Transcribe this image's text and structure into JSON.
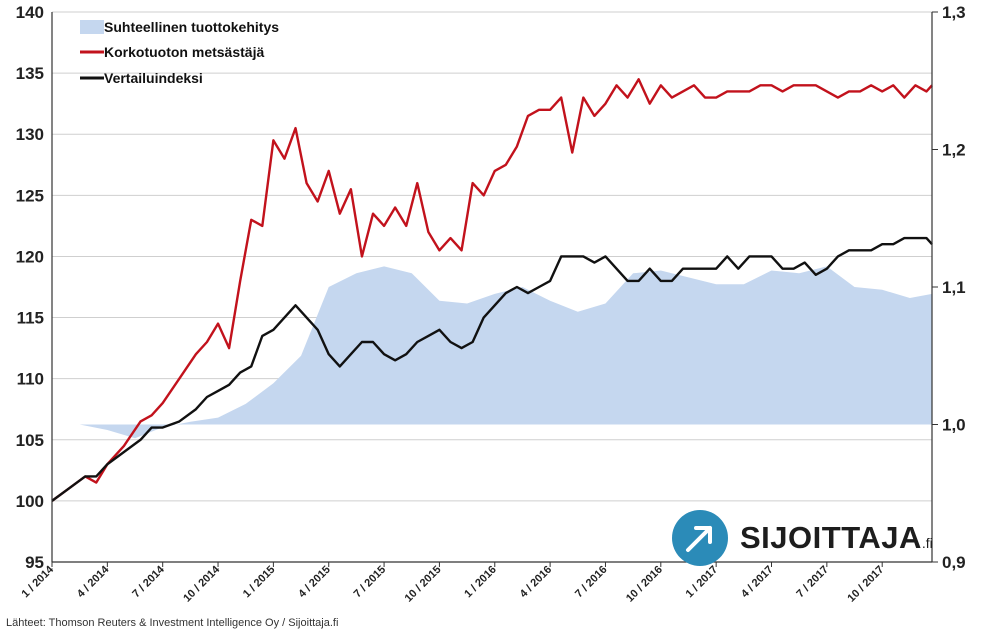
{
  "chart_data": {
    "type": "line",
    "x_labels": [
      "1 / 2014",
      "4 / 2014",
      "7 / 2014",
      "10 / 2014",
      "1 / 2015",
      "4 / 2015",
      "7 / 2015",
      "10 / 2015",
      "1 / 2016",
      "4 / 2016",
      "7 / 2016",
      "10 / 2016",
      "1 / 2017",
      "4 / 2017",
      "7 / 2017",
      "10 / 2017"
    ],
    "y_left": {
      "min": 95,
      "max": 140,
      "ticks": [
        "95",
        "100",
        "105",
        "110",
        "115",
        "120",
        "125",
        "130",
        "135",
        "140"
      ]
    },
    "y_right": {
      "min": 0.9,
      "max": 1.3,
      "ticks": [
        "0,9",
        "1,0",
        "1,1",
        "1,2",
        "1,3"
      ]
    },
    "legend_placement": "top-left",
    "series": [
      {
        "name": "Suhteellinen tuottokehitys",
        "kind": "area",
        "axis": "right",
        "color": "#c5d7ef",
        "x": [
          0,
          0.5,
          1,
          1.5,
          2,
          2.5,
          3,
          3.5,
          4,
          4.5,
          5,
          5.5,
          6,
          6.5,
          7,
          7.5,
          8,
          8.5,
          9,
          9.5,
          10,
          10.5,
          11,
          11.5,
          12,
          12.5,
          13,
          13.5,
          14,
          14.5,
          15,
          15.5,
          15.9
        ],
        "y": [
          1.0,
          1.0,
          0.996,
          0.99,
          0.998,
          1.002,
          1.005,
          1.015,
          1.03,
          1.05,
          1.1,
          1.11,
          1.115,
          1.11,
          1.09,
          1.088,
          1.095,
          1.1,
          1.09,
          1.082,
          1.088,
          1.11,
          1.112,
          1.107,
          1.102,
          1.102,
          1.112,
          1.11,
          1.115,
          1.1,
          1.098,
          1.092,
          1.095
        ]
      },
      {
        "name": "Korkotuoton metsästäjä",
        "kind": "line",
        "axis": "left",
        "color": "#c2121c",
        "x": [
          0,
          0.3,
          0.6,
          0.8,
          1,
          1.3,
          1.6,
          1.8,
          2,
          2.3,
          2.6,
          2.8,
          3,
          3.2,
          3.4,
          3.6,
          3.8,
          4,
          4.2,
          4.4,
          4.6,
          4.8,
          5,
          5.2,
          5.4,
          5.6,
          5.8,
          6,
          6.2,
          6.4,
          6.6,
          6.8,
          7,
          7.2,
          7.4,
          7.6,
          7.8,
          8,
          8.2,
          8.4,
          8.6,
          8.8,
          9,
          9.2,
          9.4,
          9.6,
          9.8,
          10,
          10.2,
          10.4,
          10.6,
          10.8,
          11,
          11.2,
          11.4,
          11.6,
          11.8,
          12,
          12.2,
          12.4,
          12.6,
          12.8,
          13,
          13.2,
          13.4,
          13.6,
          13.8,
          14,
          14.2,
          14.4,
          14.6,
          14.8,
          15,
          15.2,
          15.4,
          15.6,
          15.8,
          15.9
        ],
        "y": [
          100,
          101,
          102,
          101.5,
          103,
          104.5,
          106.5,
          107,
          108,
          110,
          112,
          113,
          114.5,
          112.5,
          118,
          123,
          122.5,
          129.5,
          128,
          130.5,
          126,
          124.5,
          127,
          123.5,
          125.5,
          120,
          123.5,
          122.5,
          124,
          122.5,
          126,
          122,
          120.5,
          121.5,
          120.5,
          126,
          125,
          127,
          127.5,
          129,
          131.5,
          132,
          132,
          133,
          128.5,
          133,
          131.5,
          132.5,
          134,
          133,
          134.5,
          132.5,
          134,
          133,
          133.5,
          134,
          133,
          133,
          133.5,
          133.5,
          133.5,
          134,
          134,
          133.5,
          134,
          134,
          134,
          133.5,
          133,
          133.5,
          133.5,
          134,
          133.5,
          134,
          133,
          134,
          133.5,
          134
        ]
      },
      {
        "name": "Vertailuindeksi",
        "kind": "line",
        "axis": "left",
        "color": "#111111",
        "x": [
          0,
          0.3,
          0.6,
          0.8,
          1,
          1.3,
          1.6,
          1.8,
          2,
          2.3,
          2.6,
          2.8,
          3,
          3.2,
          3.4,
          3.6,
          3.8,
          4,
          4.2,
          4.4,
          4.6,
          4.8,
          5,
          5.2,
          5.4,
          5.6,
          5.8,
          6,
          6.2,
          6.4,
          6.6,
          6.8,
          7,
          7.2,
          7.4,
          7.6,
          7.8,
          8,
          8.2,
          8.4,
          8.6,
          8.8,
          9,
          9.2,
          9.4,
          9.6,
          9.8,
          10,
          10.2,
          10.4,
          10.6,
          10.8,
          11,
          11.2,
          11.4,
          11.6,
          11.8,
          12,
          12.2,
          12.4,
          12.6,
          12.8,
          13,
          13.2,
          13.4,
          13.6,
          13.8,
          14,
          14.2,
          14.4,
          14.6,
          14.8,
          15,
          15.2,
          15.4,
          15.6,
          15.8,
          15.9
        ],
        "y": [
          100,
          101,
          102,
          102,
          103,
          104,
          105,
          106,
          106,
          106.5,
          107.5,
          108.5,
          109,
          109.5,
          110.5,
          111,
          113.5,
          114,
          115,
          116,
          115,
          114,
          112,
          111,
          112,
          113,
          113,
          112,
          111.5,
          112,
          113,
          113.5,
          114,
          113,
          112.5,
          113,
          115,
          116,
          117,
          117.5,
          117,
          117.5,
          118,
          120,
          120,
          120,
          119.5,
          120,
          119,
          118,
          118,
          119,
          118,
          118,
          119,
          119,
          119,
          119,
          120,
          119,
          120,
          120,
          120,
          119,
          119,
          119.5,
          118.5,
          119,
          120,
          120.5,
          120.5,
          120.5,
          121,
          121,
          121.5,
          121.5,
          121.5,
          121
        ]
      }
    ]
  },
  "footer": {
    "source": "Lähteet: Thomson Reuters & Investment Intelligence Oy / Sijoittaja.fi"
  },
  "logo": {
    "text": "SIJOITTAJA",
    "suffix": ".fi"
  }
}
